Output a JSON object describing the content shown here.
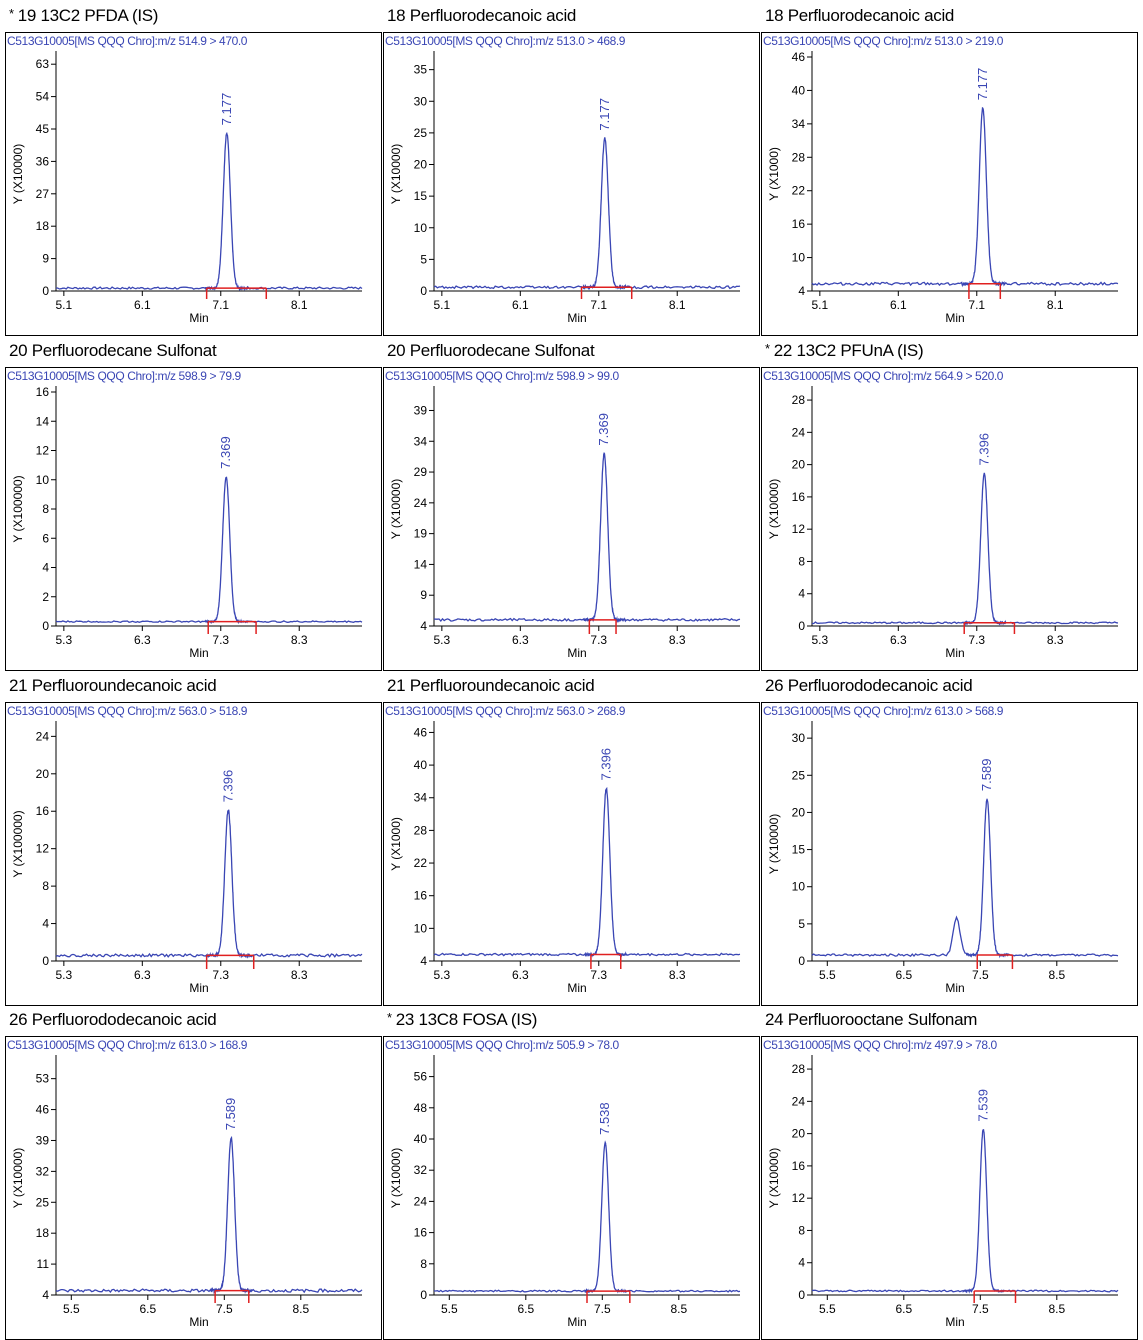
{
  "colors": {
    "trace": "#3a46b4",
    "integration": "#e02020",
    "axis": "#000000"
  },
  "panels": [
    {
      "title": "19 13C2 PFDA (IS)",
      "star": "*",
      "subtitle": "C513G10005[MS QQQ Chro]:m/z  514.9 > 470.0",
      "ylabel": "Y (X10000)",
      "xlabel": "Min",
      "chart_data": {
        "type": "line",
        "xlim": [
          5.0,
          8.9
        ],
        "ylim": [
          0,
          65
        ],
        "xticks": [
          "5.1",
          "6.1",
          "7.1",
          "8.1"
        ],
        "yticks": [
          "0",
          "9",
          "18",
          "27",
          "36",
          "45",
          "54",
          "63"
        ],
        "peak": {
          "rt": "7.177",
          "x": 7.177,
          "height": 43,
          "sigma": 0.045
        },
        "baseline": 0.8,
        "integration": [
          6.92,
          7.68
        ],
        "noise": 0.3
      }
    },
    {
      "title": "18 Perfluorodecanoic acid",
      "star": "",
      "subtitle": "C513G10005[MS QQQ Chro]:m/z  513.0 > 468.9",
      "ylabel": "Y (X10000)",
      "xlabel": "Min",
      "chart_data": {
        "type": "line",
        "xlim": [
          5.0,
          8.9
        ],
        "ylim": [
          0,
          37
        ],
        "xticks": [
          "5.1",
          "6.1",
          "7.1",
          "8.1"
        ],
        "yticks": [
          "0",
          "5",
          "10",
          "15",
          "20",
          "25",
          "30",
          "35"
        ],
        "peak": {
          "rt": "7.177",
          "x": 7.177,
          "height": 23.5,
          "sigma": 0.045
        },
        "baseline": 0.6,
        "integration": [
          6.88,
          7.52
        ],
        "noise": 0.2
      }
    },
    {
      "title": "18 Perfluorodecanoic acid",
      "star": "",
      "subtitle": "C513G10005[MS QQQ Chro]:m/z  513.0 > 219.0",
      "ylabel": "Y (X1000)",
      "xlabel": "Min",
      "chart_data": {
        "type": "line",
        "xlim": [
          5.0,
          8.9
        ],
        "ylim": [
          4,
          46
        ],
        "xticks": [
          "5.1",
          "6.1",
          "7.1",
          "8.1"
        ],
        "yticks": [
          "4",
          "10",
          "16",
          "22",
          "28",
          "34",
          "40",
          "46"
        ],
        "peak": {
          "rt": "7.177",
          "x": 7.177,
          "height": 31.5,
          "sigma": 0.045
        },
        "baseline": 5.3,
        "integration": [
          7.0,
          7.4
        ],
        "noise": 0.25
      }
    },
    {
      "title": "20 Perfluorodecane Sulfonat",
      "star": "",
      "subtitle": "C513G10005[MS QQQ Chro]:m/z  598.9 > 79.9",
      "ylabel": "Y (X100000)",
      "xlabel": "Min",
      "chart_data": {
        "type": "line",
        "xlim": [
          5.2,
          9.1
        ],
        "ylim": [
          0,
          16
        ],
        "xticks": [
          "5.3",
          "6.3",
          "7.3",
          "8.3"
        ],
        "yticks": [
          "0",
          "2",
          "4",
          "6",
          "8",
          "10",
          "12",
          "14",
          "16"
        ],
        "peak": {
          "rt": "7.369",
          "x": 7.369,
          "height": 9.9,
          "sigma": 0.045
        },
        "baseline": 0.3,
        "integration": [
          7.14,
          7.75
        ],
        "noise": 0.05
      }
    },
    {
      "title": "20 Perfluorodecane Sulfonat",
      "star": "",
      "subtitle": "C513G10005[MS QQQ Chro]:m/z  598.9 > 99.0",
      "ylabel": "Y (X10000)",
      "xlabel": "Min",
      "chart_data": {
        "type": "line",
        "xlim": [
          5.2,
          9.1
        ],
        "ylim": [
          4,
          42
        ],
        "xticks": [
          "5.3",
          "6.3",
          "7.3",
          "8.3"
        ],
        "yticks": [
          "4",
          "9",
          "14",
          "19",
          "24",
          "29",
          "34",
          "39"
        ],
        "peak": {
          "rt": "7.369",
          "x": 7.369,
          "height": 27,
          "sigma": 0.045
        },
        "baseline": 5.0,
        "integration": [
          7.18,
          7.52
        ],
        "noise": 0.2
      }
    },
    {
      "title": "22 13C2 PFUnA (IS)",
      "star": "*",
      "subtitle": "C513G10005[MS QQQ Chro]:m/z  564.9 > 520.0",
      "ylabel": "Y (X10000)",
      "xlabel": "Min",
      "chart_data": {
        "type": "line",
        "xlim": [
          5.2,
          9.1
        ],
        "ylim": [
          0,
          29
        ],
        "xticks": [
          "5.3",
          "6.3",
          "7.3",
          "8.3"
        ],
        "yticks": [
          "0",
          "4",
          "8",
          "12",
          "16",
          "20",
          "24",
          "28"
        ],
        "peak": {
          "rt": "7.396",
          "x": 7.396,
          "height": 18.5,
          "sigma": 0.045
        },
        "baseline": 0.4,
        "integration": [
          7.14,
          7.78
        ],
        "noise": 0.1
      }
    },
    {
      "title": "21 Perfluoroundecanoic acid",
      "star": "",
      "subtitle": "C513G10005[MS QQQ Chro]:m/z  563.0 > 518.9",
      "ylabel": "Y (X100000)",
      "xlabel": "Min",
      "chart_data": {
        "type": "line",
        "xlim": [
          5.2,
          9.1
        ],
        "ylim": [
          0,
          25
        ],
        "xticks": [
          "5.3",
          "6.3",
          "7.3",
          "8.3"
        ],
        "yticks": [
          "0",
          "4",
          "8",
          "12",
          "16",
          "20",
          "24"
        ],
        "peak": {
          "rt": "7.396",
          "x": 7.396,
          "height": 15.5,
          "sigma": 0.045
        },
        "baseline": 0.6,
        "integration": [
          7.12,
          7.72
        ],
        "noise": 0.15
      }
    },
    {
      "title": "21 Perfluoroundecanoic acid",
      "star": "",
      "subtitle": "C513G10005[MS QQQ Chro]:m/z  563.0 > 268.9",
      "ylabel": "Y (X1000)",
      "xlabel": "Min",
      "chart_data": {
        "type": "line",
        "xlim": [
          5.2,
          9.1
        ],
        "ylim": [
          4,
          47
        ],
        "xticks": [
          "5.3",
          "6.3",
          "7.3",
          "8.3"
        ],
        "yticks": [
          "4",
          "10",
          "16",
          "22",
          "28",
          "34",
          "40",
          "46"
        ],
        "peak": {
          "rt": "7.396",
          "x": 7.396,
          "height": 30.5,
          "sigma": 0.045
        },
        "baseline": 5.2,
        "integration": [
          7.2,
          7.58
        ],
        "noise": 0.2
      }
    },
    {
      "title": "26 Perfluorododecanoic acid",
      "star": "",
      "subtitle": "C513G10005[MS QQQ Chro]:m/z  613.0 > 568.9",
      "ylabel": "Y (X10000)",
      "xlabel": "Min",
      "chart_data": {
        "type": "line",
        "xlim": [
          5.3,
          9.3
        ],
        "ylim": [
          0,
          31.5
        ],
        "xticks": [
          "5.5",
          "6.5",
          "7.5",
          "8.5"
        ],
        "yticks": [
          "0",
          "5",
          "10",
          "15",
          "20",
          "25",
          "30"
        ],
        "peak": {
          "rt": "7.589",
          "x": 7.589,
          "height": 21,
          "sigma": 0.045
        },
        "secondary_peak": {
          "x": 7.19,
          "height": 5,
          "sigma": 0.045
        },
        "baseline": 0.8,
        "integration": [
          7.46,
          7.92
        ],
        "noise": 0.15
      }
    },
    {
      "title": "26 Perfluorododecanoic acid",
      "star": "",
      "subtitle": "C513G10005[MS QQQ Chro]:m/z  613.0 > 168.9",
      "ylabel": "Y (X10000)",
      "xlabel": "Min",
      "chart_data": {
        "type": "line",
        "xlim": [
          5.3,
          9.3
        ],
        "ylim": [
          4,
          57
        ],
        "xticks": [
          "5.5",
          "6.5",
          "7.5",
          "8.5"
        ],
        "yticks": [
          "4",
          "11",
          "18",
          "25",
          "32",
          "39",
          "46",
          "53"
        ],
        "peak": {
          "rt": "7.589",
          "x": 7.589,
          "height": 34.5,
          "sigma": 0.045
        },
        "baseline": 5.0,
        "integration": [
          7.38,
          7.82
        ],
        "noise": 0.35
      }
    },
    {
      "title": "23 13C8 FOSA (IS)",
      "star": "*",
      "subtitle": "C513G10005[MS QQQ Chro]:m/z  505.9 > 78.0",
      "ylabel": "Y (X10000)",
      "xlabel": "Min",
      "chart_data": {
        "type": "line",
        "xlim": [
          5.3,
          9.3
        ],
        "ylim": [
          0,
          60
        ],
        "xticks": [
          "5.5",
          "6.5",
          "7.5",
          "8.5"
        ],
        "yticks": [
          "0",
          "8",
          "16",
          "24",
          "32",
          "40",
          "48",
          "56"
        ],
        "peak": {
          "rt": "7.538",
          "x": 7.538,
          "height": 38,
          "sigma": 0.045
        },
        "baseline": 1.0,
        "integration": [
          7.3,
          7.86
        ],
        "noise": 0.2
      }
    },
    {
      "title": "24 Perfluorooctane Sulfonam",
      "star": "",
      "subtitle": "C513G10005[MS QQQ Chro]:m/z  497.9 > 78.0",
      "ylabel": "Y (X10000)",
      "xlabel": "Min",
      "chart_data": {
        "type": "line",
        "xlim": [
          5.3,
          9.3
        ],
        "ylim": [
          0,
          29
        ],
        "xticks": [
          "5.5",
          "6.5",
          "7.5",
          "8.5"
        ],
        "yticks": [
          "0",
          "4",
          "8",
          "12",
          "16",
          "20",
          "24",
          "28"
        ],
        "peak": {
          "rt": "7.539",
          "x": 7.539,
          "height": 20,
          "sigma": 0.045
        },
        "baseline": 0.5,
        "integration": [
          7.42,
          7.96
        ],
        "noise": 0.1
      }
    }
  ]
}
